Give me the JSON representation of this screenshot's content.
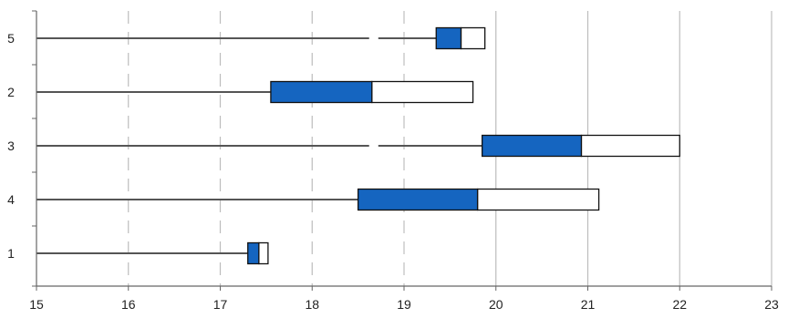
{
  "chart_data": {
    "type": "bar",
    "orientation": "horizontal",
    "categories": [
      "5",
      "2",
      "3",
      "4",
      "1"
    ],
    "series": [
      {
        "values": [
          19.35,
          17.55,
          19.85,
          18.5,
          17.3
        ]
      },
      {
        "values": [
          19.62,
          18.65,
          20.93,
          19.8,
          17.42
        ]
      },
      {
        "values": [
          19.88,
          19.75,
          22.0,
          21.12,
          17.52
        ]
      }
    ],
    "title": "",
    "xlabel": "",
    "ylabel": "",
    "xlim": [
      15,
      23
    ],
    "xticks": [
      "15",
      "16",
      "17",
      "18",
      "19",
      "20",
      "21",
      "22",
      "23"
    ],
    "grid": "vertical gridlines (dashed 16–19, solid 20–23)",
    "legend": "none",
    "colors": {
      "filled_segment": "#1565c0",
      "outline": "#111111",
      "leader_line": "#555555",
      "grid": "#bdbdbd",
      "axis": "#666666"
    }
  }
}
